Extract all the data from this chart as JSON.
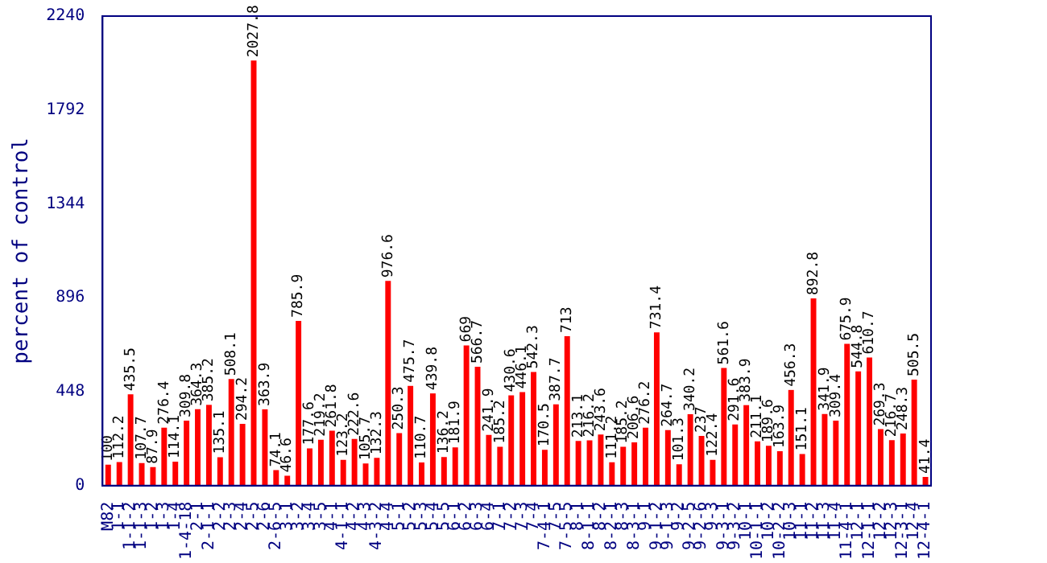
{
  "chart_data": {
    "type": "bar",
    "ylabel": "percent of control",
    "categories": [
      "M82",
      "1-1",
      "1-1-2",
      "1-1-3",
      "1-2",
      "1-3",
      "1-4",
      "1-4-18",
      "2-1",
      "2-1-1",
      "2-2",
      "2-3",
      "2-4",
      "2-5",
      "2-6",
      "2-6-5",
      "3-1",
      "3-2",
      "3-4",
      "3-5",
      "4-1",
      "4-1-1",
      "4-2",
      "4-3",
      "4-3-2",
      "4-4",
      "5-1",
      "5-2",
      "5-3",
      "5-4",
      "5-5",
      "6-1",
      "6-2",
      "6-3",
      "6-4",
      "7-1",
      "7-2",
      "7-3",
      "7-4",
      "7-4-1",
      "7-5",
      "7-5-5",
      "8-1",
      "8-1-1",
      "8-2",
      "8-2-1",
      "8-3",
      "8-3-1",
      "9-1",
      "9-1-2",
      "9-1-3",
      "9-2",
      "9-2-5",
      "9-2-6",
      "9-3",
      "9-3-1",
      "9-3-2",
      "10-1",
      "10-1-1",
      "10-2",
      "10-2-2",
      "10-3",
      "11-1",
      "11-2",
      "11-3",
      "11-4",
      "11-4-1",
      "12-1",
      "12-1-1",
      "12-2",
      "12-3",
      "12-3-1",
      "12-4",
      "12-4-1"
    ],
    "values": [
      100,
      112.2,
      435.5,
      107.7,
      87.9,
      276.4,
      114.1,
      309.8,
      364.3,
      385.2,
      135.1,
      508.1,
      294.2,
      2027.8,
      363.9,
      74.1,
      46.6,
      785.9,
      177.6,
      219.2,
      261.8,
      123.2,
      222.6,
      105.7,
      132.3,
      976.6,
      250.3,
      475.7,
      110.7,
      439.8,
      136.2,
      181.9,
      669,
      566.7,
      241.9,
      185.2,
      430.6,
      446.1,
      542.3,
      170.5,
      387.7,
      713,
      213.1,
      216.2,
      243.6,
      111.2,
      185.2,
      206.6,
      276.2,
      731.4,
      264.7,
      101.3,
      340.2,
      237,
      122.4,
      561.6,
      291.6,
      383.9,
      211.1,
      189.6,
      163.9,
      456.3,
      151.1,
      892.8,
      341.9,
      309.4,
      675.9,
      544.8,
      610.7,
      269.3,
      216.7,
      248.3,
      505.5,
      41.4
    ],
    "color": "#ff0000",
    "data_labels": true,
    "grid": false,
    "legend": false,
    "ylim": [
      0,
      2240
    ],
    "yticks": [
      0,
      448,
      896,
      1344,
      1792,
      2240
    ]
  }
}
